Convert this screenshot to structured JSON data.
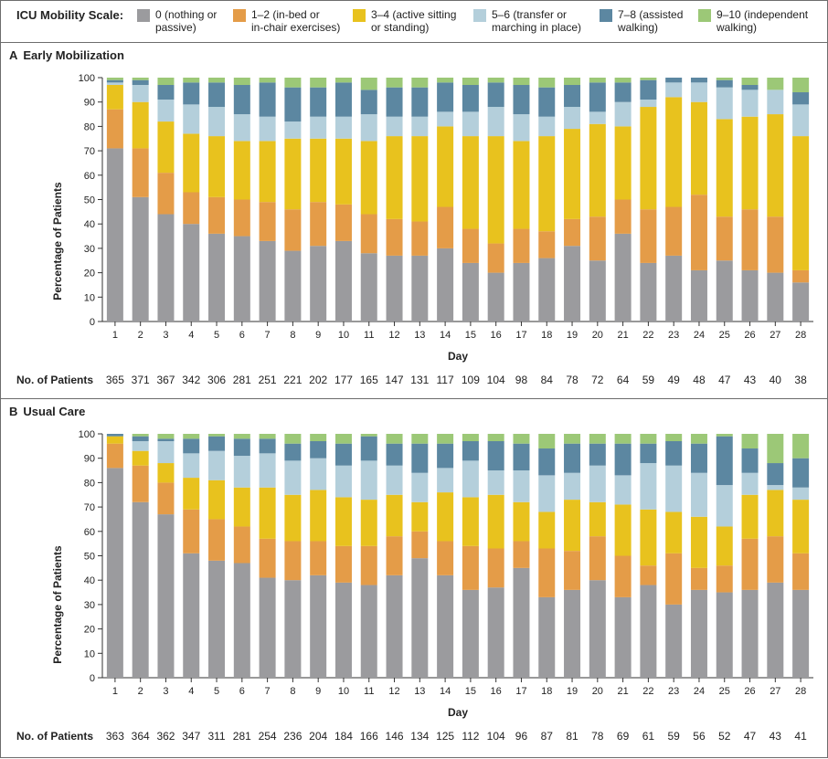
{
  "legend": {
    "title": "ICU Mobility Scale:",
    "items": [
      {
        "label": "0 (nothing or\npassive)",
        "color": "#9b9b9e"
      },
      {
        "label": "1–2 (in-bed or\nin-chair exercises)",
        "color": "#e49c48"
      },
      {
        "label": "3–4 (active sitting\nor standing)",
        "color": "#e8c21e"
      },
      {
        "label": "5–6 (transfer or\nmarching in place)",
        "color": "#b4cfdb"
      },
      {
        "label": "7–8 (assisted\nwalking)",
        "color": "#5c87a1"
      },
      {
        "label": "9–10 (independent\nwalking)",
        "color": "#9cc877"
      }
    ]
  },
  "patients_label": "No. of Patients",
  "chart_data": [
    {
      "type": "bar",
      "stacked": true,
      "panel_letter": "A",
      "title": "Early Mobilization",
      "xlabel": "Day",
      "ylabel": "Percentage of Patients",
      "ylim": [
        0,
        100
      ],
      "yticks": [
        0,
        10,
        20,
        30,
        40,
        50,
        60,
        70,
        80,
        90,
        100
      ],
      "categories": [
        "1",
        "2",
        "3",
        "4",
        "5",
        "6",
        "7",
        "8",
        "9",
        "10",
        "11",
        "12",
        "13",
        "14",
        "15",
        "16",
        "17",
        "18",
        "19",
        "20",
        "21",
        "22",
        "23",
        "24",
        "25",
        "26",
        "27",
        "28"
      ],
      "patients": [
        365,
        371,
        367,
        342,
        306,
        281,
        251,
        221,
        202,
        177,
        165,
        147,
        131,
        117,
        109,
        104,
        98,
        84,
        78,
        72,
        64,
        59,
        49,
        48,
        47,
        43,
        40,
        38
      ],
      "series": [
        {
          "name": "0",
          "values": [
            71,
            51,
            44,
            40,
            36,
            35,
            33,
            29,
            31,
            33,
            28,
            27,
            27,
            30,
            24,
            20,
            24,
            26,
            31,
            25,
            36,
            24,
            27,
            21,
            25,
            21,
            20,
            16
          ]
        },
        {
          "name": "1–2",
          "values": [
            16,
            20,
            17,
            13,
            15,
            15,
            16,
            17,
            18,
            15,
            16,
            15,
            14,
            17,
            14,
            12,
            14,
            11,
            11,
            18,
            14,
            22,
            20,
            31,
            18,
            25,
            23,
            5
          ]
        },
        {
          "name": "3–4",
          "values": [
            10,
            19,
            21,
            24,
            25,
            24,
            25,
            29,
            26,
            27,
            30,
            34,
            35,
            33,
            38,
            44,
            36,
            39,
            37,
            38,
            30,
            42,
            45,
            38,
            40,
            38,
            42,
            55
          ]
        },
        {
          "name": "5–6",
          "values": [
            1,
            7,
            9,
            12,
            12,
            11,
            10,
            7,
            9,
            9,
            11,
            8,
            8,
            6,
            10,
            12,
            11,
            8,
            9,
            5,
            10,
            3,
            6,
            8,
            13,
            11,
            10,
            13
          ]
        },
        {
          "name": "7–8",
          "values": [
            1,
            2,
            6,
            9,
            10,
            12,
            14,
            14,
            12,
            14,
            10,
            12,
            12,
            12,
            11,
            10,
            12,
            12,
            9,
            12,
            8,
            8,
            2,
            2,
            3,
            2,
            0,
            5
          ]
        },
        {
          "name": "9–10",
          "values": [
            1,
            1,
            3,
            2,
            2,
            3,
            2,
            4,
            4,
            2,
            5,
            4,
            4,
            2,
            3,
            2,
            3,
            4,
            3,
            2,
            2,
            1,
            0,
            0,
            1,
            3,
            5,
            6
          ]
        }
      ]
    },
    {
      "type": "bar",
      "stacked": true,
      "panel_letter": "B",
      "title": "Usual Care",
      "xlabel": "Day",
      "ylabel": "Percentage of Patients",
      "ylim": [
        0,
        100
      ],
      "yticks": [
        0,
        10,
        20,
        30,
        40,
        50,
        60,
        70,
        80,
        90,
        100
      ],
      "categories": [
        "1",
        "2",
        "3",
        "4",
        "5",
        "6",
        "7",
        "8",
        "9",
        "10",
        "11",
        "12",
        "13",
        "14",
        "15",
        "16",
        "17",
        "18",
        "19",
        "20",
        "21",
        "22",
        "23",
        "24",
        "25",
        "26",
        "27",
        "28"
      ],
      "patients": [
        363,
        364,
        362,
        347,
        311,
        281,
        254,
        236,
        204,
        184,
        166,
        146,
        134,
        125,
        112,
        104,
        96,
        87,
        81,
        78,
        69,
        61,
        59,
        56,
        52,
        47,
        43,
        41
      ],
      "series": [
        {
          "name": "0",
          "values": [
            86,
            72,
            67,
            51,
            48,
            47,
            41,
            40,
            42,
            39,
            38,
            42,
            49,
            42,
            36,
            37,
            45,
            33,
            36,
            40,
            33,
            38,
            30,
            36,
            35,
            36,
            39,
            36
          ]
        },
        {
          "name": "1–2",
          "values": [
            10,
            15,
            13,
            18,
            17,
            15,
            16,
            16,
            14,
            15,
            16,
            16,
            11,
            14,
            18,
            16,
            11,
            20,
            16,
            18,
            17,
            8,
            21,
            9,
            11,
            21,
            19,
            15
          ]
        },
        {
          "name": "3–4",
          "values": [
            3,
            6,
            8,
            13,
            16,
            16,
            21,
            19,
            21,
            20,
            19,
            17,
            12,
            20,
            20,
            22,
            16,
            15,
            21,
            14,
            21,
            23,
            17,
            21,
            16,
            18,
            19,
            22
          ]
        },
        {
          "name": "5–6",
          "values": [
            0,
            4,
            9,
            10,
            12,
            13,
            14,
            14,
            13,
            13,
            16,
            12,
            12,
            10,
            15,
            10,
            13,
            15,
            11,
            15,
            12,
            19,
            19,
            18,
            17,
            9,
            2,
            5
          ]
        },
        {
          "name": "7–8",
          "values": [
            1,
            2,
            1,
            6,
            6,
            7,
            6,
            7,
            7,
            9,
            10,
            9,
            12,
            10,
            8,
            12,
            11,
            11,
            12,
            9,
            13,
            8,
            10,
            12,
            20,
            10,
            9,
            12
          ]
        },
        {
          "name": "9–10",
          "values": [
            0,
            1,
            2,
            2,
            1,
            2,
            2,
            4,
            3,
            4,
            1,
            4,
            4,
            4,
            3,
            3,
            4,
            6,
            4,
            4,
            4,
            4,
            3,
            4,
            1,
            6,
            12,
            10
          ]
        }
      ]
    }
  ]
}
